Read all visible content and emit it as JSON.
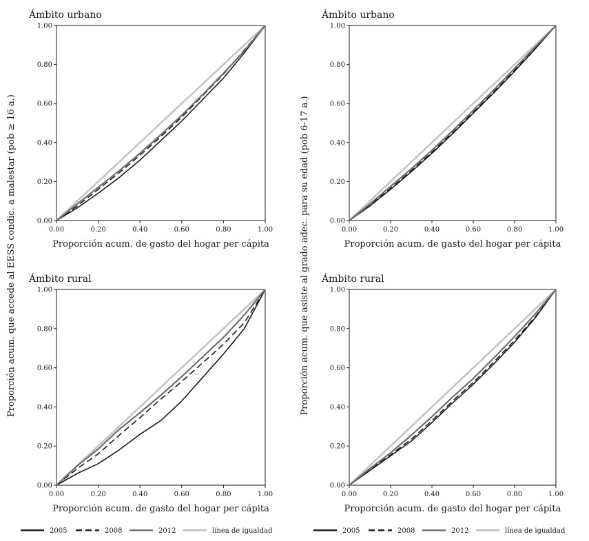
{
  "legend": {
    "items": [
      {
        "key": "2005",
        "label": "2005",
        "color": "#1a1a1a",
        "dash": "solid"
      },
      {
        "key": "2008",
        "label": "2008",
        "color": "#1a1a1a",
        "dash": "dashed"
      },
      {
        "key": "2012",
        "label": "2012",
        "color": "#6e6e6e",
        "dash": "solid"
      },
      {
        "key": "igualdad",
        "label": "línea de igualdad",
        "color": "#c4c4c4",
        "dash": "solid"
      }
    ]
  },
  "chart_data": [
    {
      "type": "line",
      "title": "Ámbito urbano",
      "xlabel": "Proporción acum. de gasto del hogar per cápita",
      "ylabel": "Proporción acum. que accede al EESS condic. a malestar (pob ≥ 16 a.)",
      "xlim": [
        0,
        1
      ],
      "ylim": [
        0,
        1
      ],
      "xticks": [
        "0.00",
        "0.20",
        "0.40",
        "0.60",
        "0.80",
        "1.00"
      ],
      "yticks": [
        "0.00",
        "0.20",
        "0.40",
        "0.60",
        "0.80",
        "1.00"
      ],
      "grid": false,
      "series": [
        {
          "name": "2005",
          "x": [
            0,
            0.1,
            0.2,
            0.3,
            0.4,
            0.5,
            0.6,
            0.7,
            0.8,
            0.9,
            1
          ],
          "y": [
            0,
            0.065,
            0.14,
            0.22,
            0.31,
            0.41,
            0.51,
            0.62,
            0.73,
            0.86,
            1
          ]
        },
        {
          "name": "2008",
          "x": [
            0,
            0.1,
            0.2,
            0.3,
            0.4,
            0.5,
            0.6,
            0.7,
            0.8,
            0.9,
            1
          ],
          "y": [
            0,
            0.075,
            0.16,
            0.245,
            0.335,
            0.43,
            0.53,
            0.64,
            0.75,
            0.875,
            1
          ]
        },
        {
          "name": "2012",
          "x": [
            0,
            0.1,
            0.2,
            0.3,
            0.4,
            0.5,
            0.6,
            0.7,
            0.8,
            0.9,
            1
          ],
          "y": [
            0,
            0.085,
            0.17,
            0.255,
            0.345,
            0.44,
            0.54,
            0.645,
            0.755,
            0.87,
            1
          ]
        },
        {
          "name": "línea de igualdad",
          "x": [
            0,
            1
          ],
          "y": [
            0,
            1
          ]
        }
      ]
    },
    {
      "type": "line",
      "title": "Ámbito urbano",
      "xlabel": "Proporción acum. de gasto del hogar per cápita",
      "ylabel": "Proporción acum. que asiste al grado adec. para su edad (pob 6-17 a.)",
      "xlim": [
        0,
        1
      ],
      "ylim": [
        0,
        1
      ],
      "xticks": [
        "0.00",
        "0.20",
        "0.40",
        "0.60",
        "0.80",
        "1.00"
      ],
      "yticks": [
        "0.00",
        "0.20",
        "0.40",
        "0.60",
        "0.80",
        "1.00"
      ],
      "grid": false,
      "series": [
        {
          "name": "2005",
          "x": [
            0,
            0.1,
            0.2,
            0.3,
            0.4,
            0.5,
            0.6,
            0.7,
            0.8,
            0.9,
            1
          ],
          "y": [
            0,
            0.075,
            0.16,
            0.25,
            0.345,
            0.445,
            0.55,
            0.655,
            0.765,
            0.88,
            1
          ]
        },
        {
          "name": "2008",
          "x": [
            0,
            0.1,
            0.2,
            0.3,
            0.4,
            0.5,
            0.6,
            0.7,
            0.8,
            0.9,
            1
          ],
          "y": [
            0,
            0.08,
            0.165,
            0.255,
            0.35,
            0.45,
            0.555,
            0.66,
            0.77,
            0.885,
            1
          ]
        },
        {
          "name": "2012",
          "x": [
            0,
            0.1,
            0.2,
            0.3,
            0.4,
            0.5,
            0.6,
            0.7,
            0.8,
            0.9,
            1
          ],
          "y": [
            0,
            0.085,
            0.175,
            0.265,
            0.36,
            0.46,
            0.565,
            0.67,
            0.78,
            0.89,
            1
          ]
        },
        {
          "name": "línea de igualdad",
          "x": [
            0,
            1
          ],
          "y": [
            0,
            1
          ]
        }
      ]
    },
    {
      "type": "line",
      "title": "Ámbito rural",
      "xlabel": "Proporción acum. de gasto del hogar per cápita",
      "ylabel": "Proporción acum. que accede al EESS condic. a malestar (pob ≥ 16 a.)",
      "xlim": [
        0,
        1
      ],
      "ylim": [
        0,
        1
      ],
      "xticks": [
        "0.00",
        "0.20",
        "0.40",
        "0.60",
        "0.80",
        "1.00"
      ],
      "yticks": [
        "0.00",
        "0.20",
        "0.40",
        "0.60",
        "0.80",
        "1.00"
      ],
      "grid": false,
      "series": [
        {
          "name": "2005",
          "x": [
            0,
            0.1,
            0.2,
            0.3,
            0.4,
            0.5,
            0.6,
            0.7,
            0.8,
            0.9,
            1
          ],
          "y": [
            0,
            0.06,
            0.11,
            0.18,
            0.26,
            0.33,
            0.43,
            0.55,
            0.67,
            0.8,
            1
          ]
        },
        {
          "name": "2008",
          "x": [
            0,
            0.1,
            0.2,
            0.3,
            0.4,
            0.5,
            0.6,
            0.7,
            0.8,
            0.9,
            1
          ],
          "y": [
            0,
            0.085,
            0.16,
            0.255,
            0.345,
            0.44,
            0.53,
            0.625,
            0.72,
            0.83,
            1
          ]
        },
        {
          "name": "2012",
          "x": [
            0,
            0.1,
            0.2,
            0.3,
            0.4,
            0.5,
            0.6,
            0.7,
            0.8,
            0.9,
            1
          ],
          "y": [
            0,
            0.1,
            0.185,
            0.285,
            0.37,
            0.46,
            0.555,
            0.655,
            0.755,
            0.87,
            1
          ]
        },
        {
          "name": "línea de igualdad",
          "x": [
            0,
            1
          ],
          "y": [
            0,
            1
          ]
        }
      ]
    },
    {
      "type": "line",
      "title": "Ámbito rural",
      "xlabel": "Proporción acum. de gasto del hogar per cápita",
      "ylabel": "Proporción acum. que asiste al grado adec. para su edad (pob 6-17 a.)",
      "xlim": [
        0,
        1
      ],
      "ylim": [
        0,
        1
      ],
      "xticks": [
        "0.00",
        "0.20",
        "0.40",
        "0.60",
        "0.80",
        "1.00"
      ],
      "yticks": [
        "0.00",
        "0.20",
        "0.40",
        "0.60",
        "0.80",
        "1.00"
      ],
      "grid": false,
      "series": [
        {
          "name": "2005",
          "x": [
            0,
            0.1,
            0.2,
            0.3,
            0.4,
            0.5,
            0.6,
            0.7,
            0.8,
            0.9,
            1
          ],
          "y": [
            0,
            0.075,
            0.15,
            0.225,
            0.32,
            0.42,
            0.515,
            0.62,
            0.73,
            0.855,
            1
          ]
        },
        {
          "name": "2008",
          "x": [
            0,
            0.1,
            0.2,
            0.3,
            0.4,
            0.5,
            0.6,
            0.7,
            0.8,
            0.9,
            1
          ],
          "y": [
            0,
            0.08,
            0.155,
            0.235,
            0.33,
            0.43,
            0.525,
            0.63,
            0.74,
            0.86,
            1
          ]
        },
        {
          "name": "2012",
          "x": [
            0,
            0.1,
            0.2,
            0.3,
            0.4,
            0.5,
            0.6,
            0.7,
            0.8,
            0.9,
            1
          ],
          "y": [
            0,
            0.085,
            0.165,
            0.255,
            0.35,
            0.45,
            0.545,
            0.65,
            0.76,
            0.875,
            1
          ]
        },
        {
          "name": "línea de igualdad",
          "x": [
            0,
            1
          ],
          "y": [
            0,
            1
          ]
        }
      ]
    }
  ]
}
